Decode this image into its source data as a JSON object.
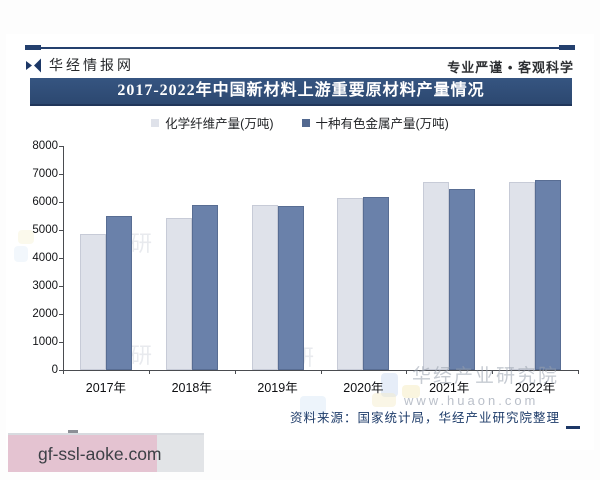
{
  "header": {
    "brand": "华经情报网",
    "slogan": "专业严谨 • 客观科学"
  },
  "title_banner": {
    "text": "2017-2022年中国新材料上游重要原材料产量情况",
    "bg_color": "#2f4e7c",
    "text_color": "#ffffff"
  },
  "chart_data": {
    "type": "bar",
    "title": "2017-2022年中国新材料上游重要原材料产量情况",
    "categories": [
      "2017年",
      "2018年",
      "2019年",
      "2020年",
      "2021年",
      "2022年"
    ],
    "series": [
      {
        "name": "化学纤维产量(万吨)",
        "color": "#dfe2ea",
        "values": [
          4850,
          5418,
          5883,
          6127,
          6709,
          6698
        ]
      },
      {
        "name": "十种有色金属产量(万吨)",
        "color": "#52688f",
        "values": [
          5501,
          5888,
          5842,
          6168,
          6454,
          6774
        ]
      }
    ],
    "xlabel": "",
    "ylabel": "",
    "ylim": [
      0,
      8000
    ],
    "y_ticks": [
      0,
      1000,
      2000,
      3000,
      4000,
      5000,
      6000,
      7000,
      8000
    ],
    "grid": false,
    "legend_position": "top"
  },
  "watermarks": {
    "brand": "华经产业研究院",
    "site": "www.huaon.com",
    "faint_char": "研"
  },
  "footer": {
    "source": "资料来源：国家统计局，华经产业研究院整理"
  },
  "badge": {
    "text": "gf-ssl-aoke.com"
  }
}
